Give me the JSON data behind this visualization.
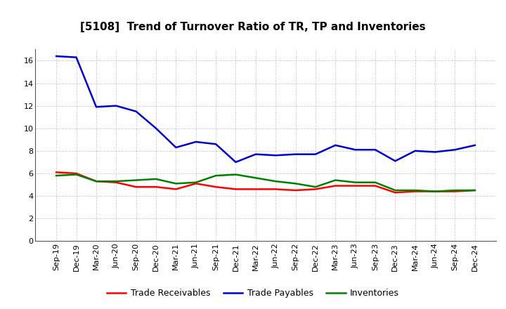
{
  "title": "[5108]  Trend of Turnover Ratio of TR, TP and Inventories",
  "x_labels": [
    "Sep-19",
    "Dec-19",
    "Mar-20",
    "Jun-20",
    "Sep-20",
    "Dec-20",
    "Mar-21",
    "Jun-21",
    "Sep-21",
    "Dec-21",
    "Mar-22",
    "Jun-22",
    "Sep-22",
    "Dec-22",
    "Mar-23",
    "Jun-23",
    "Sep-23",
    "Dec-23",
    "Mar-24",
    "Jun-24",
    "Sep-24",
    "Dec-24"
  ],
  "trade_receivables": [
    6.1,
    6.0,
    5.3,
    5.2,
    4.8,
    4.8,
    4.6,
    5.1,
    4.8,
    4.6,
    4.6,
    4.6,
    4.5,
    4.6,
    4.9,
    4.9,
    4.9,
    4.3,
    4.4,
    4.4,
    4.4,
    4.5
  ],
  "trade_payables": [
    16.4,
    16.3,
    11.9,
    12.0,
    11.5,
    10.0,
    8.3,
    8.8,
    8.6,
    7.0,
    7.7,
    7.6,
    7.7,
    7.7,
    8.5,
    8.1,
    8.1,
    7.1,
    8.0,
    7.9,
    8.1,
    8.5
  ],
  "inventories": [
    5.8,
    5.9,
    5.3,
    5.3,
    5.4,
    5.5,
    5.1,
    5.2,
    5.8,
    5.9,
    5.6,
    5.3,
    5.1,
    4.8,
    5.4,
    5.2,
    5.2,
    4.5,
    4.5,
    4.4,
    4.5,
    4.5
  ],
  "tr_color": "#ff0000",
  "tp_color": "#0000cc",
  "inv_color": "#008000",
  "ylim": [
    0.0,
    17.0
  ],
  "yticks": [
    0.0,
    2.0,
    4.0,
    6.0,
    8.0,
    10.0,
    12.0,
    14.0,
    16.0
  ],
  "background_color": "#ffffff",
  "grid_color": "#999999",
  "title_fontsize": 11,
  "axis_fontsize": 8,
  "legend_fontsize": 9,
  "line_width": 1.8
}
